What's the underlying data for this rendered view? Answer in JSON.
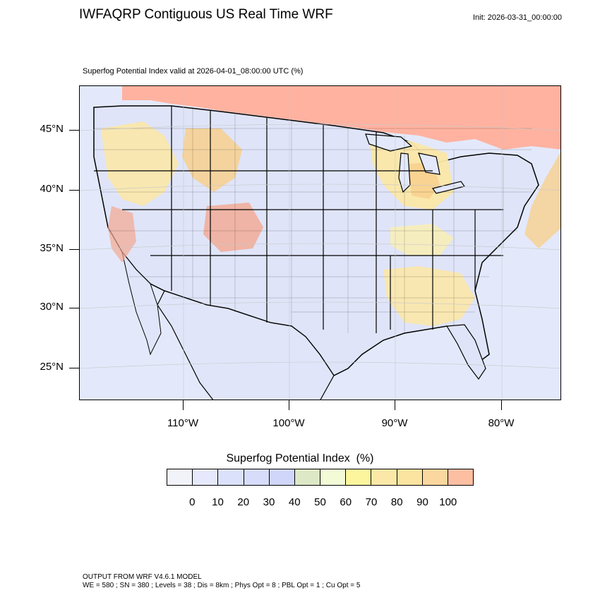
{
  "header": {
    "title": "IWFAQRP Contiguous US Real Time WRF",
    "init": "Init: 2026-03-31_00:00:00",
    "valid": "Superfog Potential Index valid at 2026-04-01_08:00:00 UTC   (%)"
  },
  "map": {
    "lat_labels": [
      "45°N",
      "40°N",
      "35°N",
      "30°N",
      "25°N"
    ],
    "lon_labels": [
      "110°W",
      "100°W",
      "90°W",
      "80°W"
    ],
    "colors": {
      "ocean": "#e3e9fb",
      "land_low": "#dfe4f8",
      "canada": "#ffb2a0",
      "warm_1": "#fbe7a8",
      "warm_2": "#f8d08e",
      "warm_3": "#f3a890",
      "green": "#dde9c8"
    }
  },
  "legend": {
    "title": "Superfog Potential Index  (%)",
    "tick_labels": [
      "0",
      "10",
      "20",
      "30",
      "40",
      "50",
      "60",
      "70",
      "80",
      "90",
      "100"
    ],
    "colors": [
      "#f1f3f8",
      "#e6e9fb",
      "#dbe1fa",
      "#d6dcf9",
      "#d0d6fa",
      "#dde8c6",
      "#f2fbd6",
      "#fdf59e",
      "#fbe8a6",
      "#fbe3a0",
      "#fad79e",
      "#fdbfa2"
    ]
  },
  "footer": {
    "line1": "OUTPUT FROM WRF V4.6.1 MODEL",
    "line2": "WE = 580 ; SN = 380 ; Levels = 38 ; Dis = 8km ; Phys Opt = 8 ; PBL Opt = 1 ; Cu Opt = 5"
  }
}
